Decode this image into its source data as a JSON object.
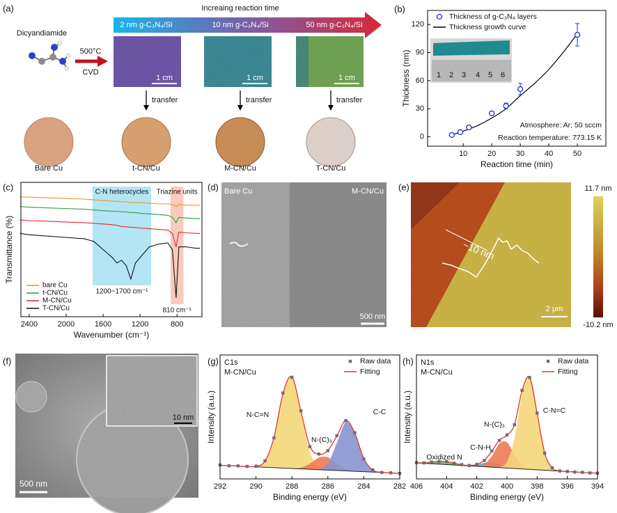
{
  "panel_a": {
    "label": "(a)",
    "banner_title": "Increaing reaction time",
    "banner_labels": [
      "2 nm g-C₃N₄/Si",
      "10 nm g-C₃N₄/Si",
      "50 nm g-C₃N₄/Si"
    ],
    "precursor": "Dicyandiamide",
    "temperature": "500°C",
    "method": "CVD",
    "scale_bars": [
      "1 cm",
      "1 cm",
      "1 cm"
    ],
    "transfer": [
      "transfer",
      "transfer",
      "transfer"
    ],
    "samples": [
      "Bare Cu",
      "t-CN/Cu",
      "M-CN/Cu",
      "T-CN/Cu"
    ]
  },
  "panel_d": {
    "label": "(d)",
    "left": "Bare Cu",
    "right": "M-CN/Cu",
    "scale_bar": "500 nm"
  },
  "panel_e": {
    "label": "(e)",
    "height": "~10 nm",
    "scale_bar": "2 μm",
    "colorbar_max": "11.7 nm",
    "colorbar_min": "-10.2 nm"
  },
  "panel_f": {
    "label": "(f)",
    "scale_bar": "500 nm",
    "inset_scale_bar": "10 nm"
  },
  "chart_data": [
    {
      "type": "scatter",
      "label": "(b)",
      "xlabel": "Reaction time (min)",
      "ylabel": "Thickness (nm)",
      "xlim": [
        -2.5,
        60
      ],
      "ylim": [
        -10,
        135
      ],
      "xticks": [
        10,
        20,
        30,
        40,
        50
      ],
      "yticks": [
        0,
        30,
        60,
        90,
        120
      ],
      "legend": "upper left",
      "annotations": [
        "Atmosphere: Ar; 50 sccm",
        "Reaction temperature: 773.15 K"
      ],
      "inset_ruler": [
        "1",
        "2",
        "3",
        "4",
        "5",
        "6"
      ],
      "series": [
        {
          "name": "Thickness of g-C₃N₄ layers",
          "kind": "scatter",
          "marker": "circle",
          "color": "#1f2fd6",
          "x": [
            6,
            9,
            12,
            20,
            25,
            30,
            50
          ],
          "values": [
            2,
            5,
            10,
            25,
            33,
            51,
            109
          ],
          "errors": [
            1,
            1,
            1,
            2,
            3,
            6,
            12
          ]
        },
        {
          "name": "Thickness growth curve",
          "kind": "line",
          "color": "#000000",
          "x": [
            5,
            10,
            15,
            20,
            25,
            30,
            35,
            40,
            45,
            50
          ],
          "values": [
            1,
            6,
            12,
            20,
            30,
            44,
            57,
            72,
            90,
            110
          ]
        }
      ]
    },
    {
      "type": "line",
      "label": "(c)",
      "xlabel": "Wavenumber (cm⁻¹)",
      "ylabel": "Transmittance (%)",
      "xlim": [
        2490,
        530
      ],
      "ylim": [
        0,
        100
      ],
      "xticks": [
        2400,
        2000,
        1600,
        1200,
        800
      ],
      "legend": "lower left",
      "bands": [
        {
          "from": 1714,
          "to": 1080,
          "color": "#b3e5f5",
          "label": "C-N heterocycles",
          "note": "1200~1700 cm⁻¹"
        },
        {
          "from": 870,
          "to": 730,
          "color": "#f8cbbd",
          "label": "Triazine units",
          "note": "810 cm⁻¹"
        }
      ],
      "x": [
        2500,
        2400,
        2200,
        2000,
        1800,
        1700,
        1600,
        1500,
        1450,
        1400,
        1350,
        1300,
        1250,
        1200,
        1100,
        1000,
        900,
        850,
        810,
        780,
        700,
        600,
        550
      ],
      "series": [
        {
          "name": "bare Cu",
          "color": "#f0902a",
          "values": [
            89,
            89,
            88.5,
            88,
            87.5,
            87,
            86.5,
            86,
            86,
            85.5,
            85.5,
            85,
            85,
            85,
            84.5,
            84,
            84,
            83.5,
            82,
            83.5,
            83,
            83,
            83
          ]
        },
        {
          "name": "t-CN/Cu",
          "color": "#2e9a3a",
          "values": [
            82,
            81.5,
            81,
            80.5,
            80,
            79.5,
            79,
            78.5,
            78.5,
            78,
            78,
            77.5,
            77.5,
            77,
            76.5,
            76,
            75.5,
            74,
            70,
            74,
            73.5,
            73,
            73
          ]
        },
        {
          "name": "M-CN/Cu",
          "color": "#e0262b",
          "values": [
            72,
            71.5,
            71,
            70.5,
            70,
            69.5,
            69,
            68.5,
            68,
            67,
            67,
            66.5,
            66.5,
            66,
            65.5,
            65,
            64.5,
            62,
            52,
            63,
            62.5,
            62,
            62
          ]
        },
        {
          "name": "T-CN/Cu",
          "color": "#111111",
          "values": [
            62,
            61,
            60,
            59,
            58,
            56,
            50,
            44,
            40,
            42,
            38,
            28,
            40,
            44,
            52,
            54,
            55,
            50,
            14,
            52,
            52,
            51,
            51
          ]
        }
      ]
    },
    {
      "type": "area",
      "label": "(g)",
      "title": "C1s",
      "subtitle": "M-CN/Cu",
      "xlabel": "Binding energy (eV)",
      "ylabel": "Intensity (a.u.)",
      "xlim": [
        292,
        282
      ],
      "ylim": [
        0,
        100
      ],
      "xticks": [
        292,
        290,
        288,
        286,
        284,
        282
      ],
      "legend": "upper right",
      "x": [
        292,
        291.5,
        291,
        290.5,
        290,
        289.5,
        289,
        288.5,
        288,
        287.5,
        287,
        286.5,
        286,
        285.5,
        285,
        284.5,
        284,
        283.5,
        283,
        282.5,
        282
      ],
      "background": [
        11.0,
        10.7,
        10.4,
        10.0,
        9.7,
        9.4,
        9.1,
        8.7,
        8.4,
        8.1,
        7.8,
        7.4,
        7.1,
        6.8,
        6.5,
        6.1,
        5.8,
        5.5,
        5.2,
        4.8,
        4.5
      ],
      "series": [
        {
          "name": "Raw data",
          "kind": "scatter",
          "marker": "square",
          "color": "#6f6a80",
          "values": [
            11.2,
            10.6,
            10.5,
            10.1,
            10.3,
            14.6,
            33.1,
            69.3,
            82.0,
            54.9,
            26.0,
            20.1,
            22.8,
            34.9,
            47.0,
            37.3,
            16.0,
            7.3,
            5.2,
            4.9,
            4.4
          ]
        },
        {
          "name": "Fitting",
          "kind": "line",
          "color": "#e8342a",
          "values": [
            11.0,
            10.7,
            10.4,
            10.0,
            10.2,
            14.3,
            33.5,
            68.8,
            82.5,
            54.6,
            26.3,
            19.8,
            23.1,
            34.5,
            47.3,
            37.0,
            16.3,
            7.1,
            5.3,
            4.8,
            4.5
          ]
        },
        {
          "name": "N-C=N",
          "kind": "area",
          "color": "#f5d77a",
          "values": [
            0,
            0,
            0,
            0,
            0.5,
            4.9,
            24.4,
            60.1,
            74.0,
            45.5,
            14.0,
            2.1,
            0.2,
            0,
            0,
            0,
            0,
            0,
            0,
            0,
            0
          ]
        },
        {
          "name": "N-(C)₃",
          "kind": "area",
          "color": "#ee7a55",
          "values": [
            0,
            0,
            0,
            0,
            0,
            0,
            0,
            0,
            0.1,
            1.0,
            4.5,
            9.7,
            10.4,
            5.6,
            1.5,
            0.2,
            0,
            0,
            0,
            0,
            0
          ]
        },
        {
          "name": "C-C",
          "kind": "area",
          "color": "#8a94cf",
          "values": [
            0,
            0,
            0,
            0,
            0,
            0,
            0,
            0,
            0,
            0,
            0,
            0.6,
            5.4,
            22.1,
            39.3,
            30.7,
            10.5,
            1.6,
            0.1,
            0,
            0
          ]
        }
      ]
    },
    {
      "type": "area",
      "label": "(h)",
      "title": "N1s",
      "subtitle": "M-CN/Cu",
      "xlabel": "Binding energy (eV)",
      "ylabel": "Intensity (a.u.)",
      "xlim": [
        406,
        394
      ],
      "ylim": [
        0,
        100
      ],
      "xticks": [
        406,
        404,
        402,
        400,
        398,
        396,
        394
      ],
      "legend": "upper right",
      "x": [
        406,
        405.5,
        405,
        404.5,
        404,
        403.5,
        403,
        402.5,
        402,
        401.5,
        401,
        400.5,
        400,
        399.5,
        399,
        398.5,
        398,
        397.5,
        397,
        396.5,
        396,
        395.5,
        395,
        394.5,
        394
      ],
      "background": [
        12.9,
        12.6,
        12.2,
        11.9,
        11.5,
        11.2,
        10.8,
        10.5,
        10.1,
        9.8,
        9.4,
        9.1,
        8.7,
        8.4,
        8.0,
        7.7,
        7.3,
        7.0,
        6.6,
        6.3,
        5.9,
        5.6,
        5.2,
        4.9,
        4.5
      ],
      "series": [
        {
          "name": "Raw data",
          "kind": "scatter",
          "marker": "square",
          "color": "#6f6a80",
          "values": [
            13.1,
            12.9,
            13.6,
            14.0,
            14.1,
            12.6,
            11.5,
            10.8,
            11.8,
            14.9,
            22.6,
            31.1,
            35.4,
            43.7,
            71.5,
            81.8,
            53.1,
            20.7,
            8.9,
            6.4,
            6.0,
            5.5,
            5.3,
            4.8,
            4.6
          ]
        },
        {
          "name": "Fitting",
          "kind": "line",
          "color": "#e8342a",
          "values": [
            13.0,
            13.0,
            13.5,
            14.2,
            13.9,
            12.7,
            11.4,
            10.9,
            11.6,
            15.1,
            22.3,
            31.4,
            35.1,
            44.0,
            71.1,
            82.1,
            52.8,
            21.0,
            8.7,
            6.5,
            5.9,
            5.6,
            5.2,
            4.9,
            4.5
          ]
        },
        {
          "name": "Oxidized N",
          "kind": "area",
          "color": "#72b865",
          "values": [
            0.1,
            0.4,
            1.3,
            2.3,
            2.4,
            1.5,
            0.6,
            0.1,
            0,
            0,
            0,
            0,
            0,
            0,
            0,
            0,
            0,
            0,
            0,
            0,
            0,
            0,
            0,
            0,
            0
          ]
        },
        {
          "name": "C-N-H",
          "kind": "area",
          "color": "#52aecf",
          "values": [
            0,
            0,
            0,
            0,
            0,
            0,
            0,
            0.3,
            1.3,
            3.2,
            3.9,
            2.4,
            0.7,
            0.1,
            0,
            0,
            0,
            0,
            0,
            0,
            0,
            0,
            0,
            0,
            0
          ]
        },
        {
          "name": "N-(C)₃",
          "kind": "area",
          "color": "#ee7a55",
          "values": [
            0,
            0,
            0,
            0,
            0,
            0,
            0,
            0,
            0.2,
            2.1,
            9.0,
            19.4,
            20.8,
            11.1,
            3.0,
            0.4,
            0,
            0,
            0,
            0,
            0,
            0,
            0,
            0,
            0
          ]
        },
        {
          "name": "C-N=C",
          "kind": "area",
          "color": "#f5d77a",
          "values": [
            0,
            0,
            0,
            0,
            0,
            0,
            0,
            0,
            0,
            0,
            0,
            0.5,
            4.9,
            24.4,
            60.1,
            74.0,
            45.5,
            14.0,
            2.1,
            0.2,
            0,
            0,
            0,
            0,
            0
          ]
        }
      ]
    }
  ]
}
